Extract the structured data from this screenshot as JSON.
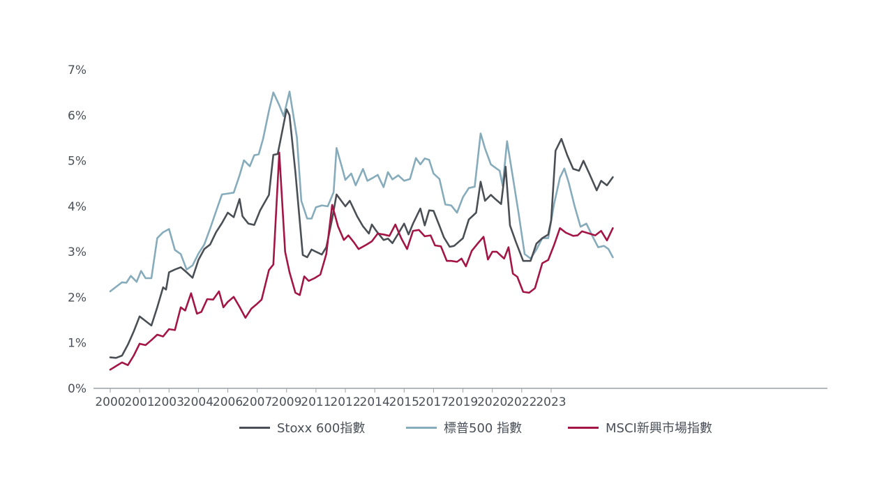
{
  "chart_data": {
    "type": "line",
    "title": "",
    "xlabel": "",
    "ylabel": "",
    "xlim": [
      2000,
      2024.4
    ],
    "ylim": [
      0,
      7
    ],
    "y_ticks": [
      "0%",
      "1%",
      "2%",
      "3%",
      "4%",
      "5%",
      "6%",
      "7%"
    ],
    "x_ticks": [
      {
        "year": 2000,
        "label": "2000"
      },
      {
        "year": 2001,
        "label": "2001"
      },
      {
        "year": 2002,
        "label": "2003"
      },
      {
        "year": 2003,
        "label": "2004"
      },
      {
        "year": 2004,
        "label": "2006"
      },
      {
        "year": 2005,
        "label": "2007"
      },
      {
        "year": 2006,
        "label": "2009"
      },
      {
        "year": 2007,
        "label": "2011"
      },
      {
        "year": 2008,
        "label": "2012"
      },
      {
        "year": 2009,
        "label": "2014"
      },
      {
        "year": 2010,
        "label": "2015"
      },
      {
        "year": 2011,
        "label": "2017"
      },
      {
        "year": 2012,
        "label": "2019"
      },
      {
        "year": 2013,
        "label": "2020"
      },
      {
        "year": 2014,
        "label": "2022"
      },
      {
        "year": 2015,
        "label": "2023"
      }
    ],
    "grid": false,
    "legend_position": "bottom",
    "series": [
      {
        "name": "Stoxx 600指數",
        "color": "#4a4f55",
        "points": [
          [
            2000.0,
            0.68
          ],
          [
            2000.2,
            0.67
          ],
          [
            2000.4,
            0.72
          ],
          [
            2000.6,
            0.96
          ],
          [
            2000.8,
            1.25
          ],
          [
            2001.0,
            1.58
          ],
          [
            2001.2,
            1.48
          ],
          [
            2001.4,
            1.38
          ],
          [
            2001.6,
            1.78
          ],
          [
            2001.8,
            2.22
          ],
          [
            2001.9,
            2.17
          ],
          [
            2002.0,
            2.55
          ],
          [
            2002.2,
            2.61
          ],
          [
            2002.4,
            2.66
          ],
          [
            2002.6,
            2.55
          ],
          [
            2002.8,
            2.43
          ],
          [
            2003.0,
            2.82
          ],
          [
            2003.2,
            3.06
          ],
          [
            2003.4,
            3.16
          ],
          [
            2003.6,
            3.43
          ],
          [
            2003.8,
            3.63
          ],
          [
            2004.0,
            3.86
          ],
          [
            2004.2,
            3.76
          ],
          [
            2004.4,
            4.16
          ],
          [
            2004.5,
            3.78
          ],
          [
            2004.7,
            3.62
          ],
          [
            2004.9,
            3.59
          ],
          [
            2005.1,
            3.91
          ],
          [
            2005.4,
            4.25
          ],
          [
            2005.55,
            5.13
          ],
          [
            2005.7,
            5.15
          ],
          [
            2006.0,
            6.13
          ],
          [
            2006.1,
            6.0
          ],
          [
            2006.3,
            4.75
          ],
          [
            2006.55,
            2.93
          ],
          [
            2006.7,
            2.88
          ],
          [
            2006.85,
            3.05
          ],
          [
            2007.0,
            3.0
          ],
          [
            2007.2,
            2.94
          ],
          [
            2007.35,
            3.1
          ],
          [
            2007.55,
            3.72
          ],
          [
            2007.7,
            4.26
          ],
          [
            2008.0,
            4.0
          ],
          [
            2008.15,
            4.12
          ],
          [
            2008.4,
            3.78
          ],
          [
            2008.6,
            3.56
          ],
          [
            2008.8,
            3.4
          ],
          [
            2008.9,
            3.6
          ],
          [
            2009.05,
            3.46
          ],
          [
            2009.3,
            3.26
          ],
          [
            2009.45,
            3.29
          ],
          [
            2009.6,
            3.19
          ],
          [
            2009.8,
            3.4
          ],
          [
            2010.0,
            3.62
          ],
          [
            2010.15,
            3.38
          ],
          [
            2010.3,
            3.62
          ],
          [
            2010.55,
            3.95
          ],
          [
            2010.7,
            3.58
          ],
          [
            2010.85,
            3.91
          ],
          [
            2011.0,
            3.9
          ],
          [
            2011.2,
            3.57
          ],
          [
            2011.35,
            3.32
          ],
          [
            2011.55,
            3.11
          ],
          [
            2011.7,
            3.13
          ],
          [
            2012.0,
            3.3
          ],
          [
            2012.2,
            3.71
          ],
          [
            2012.45,
            3.86
          ],
          [
            2012.6,
            4.54
          ],
          [
            2012.75,
            4.12
          ],
          [
            2012.95,
            4.25
          ],
          [
            2013.1,
            4.16
          ],
          [
            2013.3,
            4.05
          ],
          [
            2013.45,
            4.87
          ],
          [
            2013.6,
            3.58
          ],
          [
            2013.8,
            3.22
          ],
          [
            2014.05,
            2.8
          ],
          [
            2014.3,
            2.8
          ],
          [
            2014.5,
            3.18
          ],
          [
            2014.7,
            3.3
          ],
          [
            2014.9,
            3.38
          ],
          [
            2015.0,
            3.69
          ],
          [
            2015.15,
            5.22
          ],
          [
            2015.35,
            5.48
          ],
          [
            2015.55,
            5.12
          ],
          [
            2015.75,
            4.82
          ],
          [
            2015.95,
            4.78
          ],
          [
            2016.1,
            5.0
          ],
          [
            2016.3,
            4.72
          ],
          [
            2016.55,
            4.35
          ],
          [
            2016.7,
            4.56
          ],
          [
            2016.9,
            4.46
          ],
          [
            2017.1,
            4.64
          ]
        ]
      },
      {
        "name": "標普500 指數",
        "color": "#86abbb",
        "points": [
          [
            2000.0,
            2.13
          ],
          [
            2000.2,
            2.23
          ],
          [
            2000.4,
            2.33
          ],
          [
            2000.55,
            2.32
          ],
          [
            2000.7,
            2.47
          ],
          [
            2000.9,
            2.34
          ],
          [
            2001.05,
            2.58
          ],
          [
            2001.2,
            2.42
          ],
          [
            2001.4,
            2.42
          ],
          [
            2001.6,
            3.3
          ],
          [
            2001.8,
            3.43
          ],
          [
            2002.0,
            3.5
          ],
          [
            2002.2,
            3.04
          ],
          [
            2002.4,
            2.95
          ],
          [
            2002.6,
            2.61
          ],
          [
            2002.8,
            2.7
          ],
          [
            2003.0,
            2.96
          ],
          [
            2003.2,
            3.16
          ],
          [
            2003.4,
            3.51
          ],
          [
            2003.6,
            3.89
          ],
          [
            2003.8,
            4.26
          ],
          [
            2004.0,
            4.28
          ],
          [
            2004.2,
            4.3
          ],
          [
            2004.4,
            4.68
          ],
          [
            2004.55,
            5.01
          ],
          [
            2004.75,
            4.88
          ],
          [
            2004.9,
            5.12
          ],
          [
            2005.05,
            5.14
          ],
          [
            2005.2,
            5.48
          ],
          [
            2005.4,
            6.1
          ],
          [
            2005.55,
            6.5
          ],
          [
            2005.75,
            6.22
          ],
          [
            2005.9,
            5.98
          ],
          [
            2006.1,
            6.52
          ],
          [
            2006.35,
            5.52
          ],
          [
            2006.5,
            4.12
          ],
          [
            2006.7,
            3.73
          ],
          [
            2006.85,
            3.73
          ],
          [
            2007.0,
            3.98
          ],
          [
            2007.2,
            4.02
          ],
          [
            2007.4,
            4.0
          ],
          [
            2007.6,
            4.31
          ],
          [
            2007.7,
            5.28
          ],
          [
            2007.9,
            4.82
          ],
          [
            2008.0,
            4.58
          ],
          [
            2008.2,
            4.72
          ],
          [
            2008.35,
            4.46
          ],
          [
            2008.6,
            4.82
          ],
          [
            2008.75,
            4.56
          ],
          [
            2008.95,
            4.63
          ],
          [
            2009.1,
            4.69
          ],
          [
            2009.3,
            4.42
          ],
          [
            2009.45,
            4.75
          ],
          [
            2009.6,
            4.59
          ],
          [
            2009.8,
            4.68
          ],
          [
            2010.0,
            4.56
          ],
          [
            2010.2,
            4.6
          ],
          [
            2010.4,
            5.06
          ],
          [
            2010.55,
            4.92
          ],
          [
            2010.7,
            5.05
          ],
          [
            2010.85,
            5.02
          ],
          [
            2011.0,
            4.72
          ],
          [
            2011.2,
            4.6
          ],
          [
            2011.4,
            4.04
          ],
          [
            2011.6,
            4.02
          ],
          [
            2011.8,
            3.86
          ],
          [
            2012.0,
            4.2
          ],
          [
            2012.2,
            4.4
          ],
          [
            2012.4,
            4.43
          ],
          [
            2012.6,
            5.6
          ],
          [
            2012.75,
            5.27
          ],
          [
            2012.95,
            4.92
          ],
          [
            2013.1,
            4.85
          ],
          [
            2013.25,
            4.78
          ],
          [
            2013.35,
            4.45
          ],
          [
            2013.5,
            5.43
          ],
          [
            2013.7,
            4.63
          ],
          [
            2013.9,
            3.82
          ],
          [
            2014.1,
            2.95
          ],
          [
            2014.3,
            2.85
          ],
          [
            2014.5,
            3.05
          ],
          [
            2014.7,
            3.3
          ],
          [
            2014.9,
            3.3
          ],
          [
            2015.1,
            4.05
          ],
          [
            2015.3,
            4.63
          ],
          [
            2015.45,
            4.83
          ],
          [
            2015.6,
            4.52
          ],
          [
            2015.8,
            4.0
          ],
          [
            2016.0,
            3.55
          ],
          [
            2016.2,
            3.62
          ],
          [
            2016.4,
            3.35
          ],
          [
            2016.6,
            3.1
          ],
          [
            2016.8,
            3.13
          ],
          [
            2016.95,
            3.06
          ],
          [
            2017.1,
            2.88
          ]
        ]
      },
      {
        "name": "MSCI新興市場指數",
        "color": "#a31545",
        "points": [
          [
            2000.0,
            0.41
          ],
          [
            2000.2,
            0.49
          ],
          [
            2000.4,
            0.57
          ],
          [
            2000.6,
            0.51
          ],
          [
            2000.8,
            0.72
          ],
          [
            2001.0,
            0.98
          ],
          [
            2001.2,
            0.95
          ],
          [
            2001.4,
            1.06
          ],
          [
            2001.6,
            1.18
          ],
          [
            2001.8,
            1.14
          ],
          [
            2002.0,
            1.3
          ],
          [
            2002.2,
            1.28
          ],
          [
            2002.4,
            1.78
          ],
          [
            2002.55,
            1.71
          ],
          [
            2002.75,
            2.09
          ],
          [
            2002.95,
            1.64
          ],
          [
            2003.1,
            1.68
          ],
          [
            2003.3,
            1.96
          ],
          [
            2003.5,
            1.95
          ],
          [
            2003.7,
            2.13
          ],
          [
            2003.85,
            1.78
          ],
          [
            2004.0,
            1.9
          ],
          [
            2004.2,
            2.01
          ],
          [
            2004.4,
            1.79
          ],
          [
            2004.6,
            1.55
          ],
          [
            2004.8,
            1.75
          ],
          [
            2005.0,
            1.86
          ],
          [
            2005.15,
            1.95
          ],
          [
            2005.4,
            2.6
          ],
          [
            2005.55,
            2.72
          ],
          [
            2005.75,
            5.18
          ],
          [
            2005.95,
            3.0
          ],
          [
            2006.1,
            2.55
          ],
          [
            2006.3,
            2.1
          ],
          [
            2006.45,
            2.05
          ],
          [
            2006.6,
            2.46
          ],
          [
            2006.75,
            2.36
          ],
          [
            2006.95,
            2.42
          ],
          [
            2007.15,
            2.5
          ],
          [
            2007.35,
            2.95
          ],
          [
            2007.55,
            4.03
          ],
          [
            2007.75,
            3.56
          ],
          [
            2007.95,
            3.26
          ],
          [
            2008.1,
            3.36
          ],
          [
            2008.3,
            3.2
          ],
          [
            2008.45,
            3.06
          ],
          [
            2008.7,
            3.15
          ],
          [
            2008.9,
            3.23
          ],
          [
            2009.1,
            3.4
          ],
          [
            2009.3,
            3.38
          ],
          [
            2009.5,
            3.35
          ],
          [
            2009.7,
            3.6
          ],
          [
            2009.9,
            3.3
          ],
          [
            2010.1,
            3.06
          ],
          [
            2010.3,
            3.46
          ],
          [
            2010.5,
            3.48
          ],
          [
            2010.7,
            3.34
          ],
          [
            2010.9,
            3.36
          ],
          [
            2011.05,
            3.14
          ],
          [
            2011.25,
            3.12
          ],
          [
            2011.45,
            2.8
          ],
          [
            2011.6,
            2.8
          ],
          [
            2011.8,
            2.78
          ],
          [
            2011.95,
            2.85
          ],
          [
            2012.1,
            2.68
          ],
          [
            2012.3,
            3.02
          ],
          [
            2012.5,
            3.18
          ],
          [
            2012.7,
            3.33
          ],
          [
            2012.85,
            2.83
          ],
          [
            2013.0,
            3.0
          ],
          [
            2013.15,
            3.0
          ],
          [
            2013.4,
            2.85
          ],
          [
            2013.55,
            3.1
          ],
          [
            2013.7,
            2.52
          ],
          [
            2013.85,
            2.45
          ],
          [
            2014.05,
            2.12
          ],
          [
            2014.25,
            2.1
          ],
          [
            2014.45,
            2.2
          ],
          [
            2014.7,
            2.75
          ],
          [
            2014.9,
            2.82
          ],
          [
            2015.1,
            3.15
          ],
          [
            2015.3,
            3.52
          ],
          [
            2015.5,
            3.42
          ],
          [
            2015.75,
            3.35
          ],
          [
            2015.9,
            3.36
          ],
          [
            2016.05,
            3.45
          ],
          [
            2016.3,
            3.4
          ],
          [
            2016.5,
            3.36
          ],
          [
            2016.7,
            3.46
          ],
          [
            2016.9,
            3.25
          ],
          [
            2017.1,
            3.52
          ]
        ]
      }
    ]
  }
}
